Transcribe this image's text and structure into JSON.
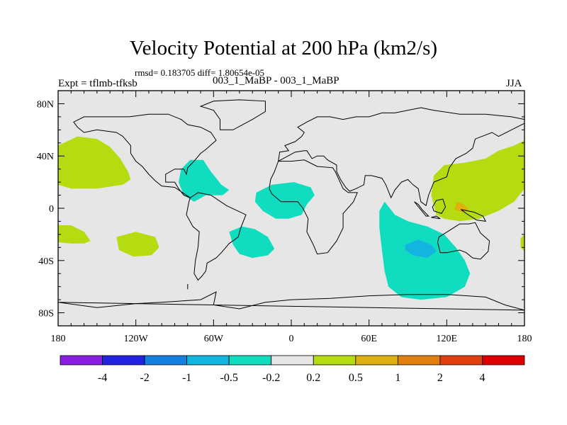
{
  "chart_data": {
    "type": "heatmap",
    "title": "Velocity Potential at 200 hPa (km2/s)",
    "stats_text": "rmsd= 0.183705 diff= 1.80654e-05",
    "left_label": "Expt = tflmb-tfksb",
    "center_label": "003_1_MaBP - 003_1_MaBP",
    "right_label": "JJA",
    "x_range": [
      -180,
      180
    ],
    "y_range": [
      -90,
      90
    ],
    "x_ticks": [
      {
        "value": -180,
        "label": "180"
      },
      {
        "value": -120,
        "label": "120W"
      },
      {
        "value": -60,
        "label": "60W"
      },
      {
        "value": 0,
        "label": "0"
      },
      {
        "value": 60,
        "label": "60E"
      },
      {
        "value": 120,
        "label": "120E"
      },
      {
        "value": 180,
        "label": "180"
      }
    ],
    "y_ticks": [
      {
        "value": 80,
        "label": "80N"
      },
      {
        "value": 40,
        "label": "40N"
      },
      {
        "value": 0,
        "label": "0"
      },
      {
        "value": -40,
        "label": "40S"
      },
      {
        "value": -80,
        "label": "80S"
      }
    ],
    "background_color": "#e6e6e6",
    "colorbar": {
      "colors": [
        "#8a1ee0",
        "#2222e0",
        "#1480e0",
        "#14b4e0",
        "#10dcc0",
        "#e6e6e6",
        "#b4dc10",
        "#e0b010",
        "#e08010",
        "#e04010",
        "#dc0000"
      ],
      "labels": [
        "-4",
        "-2",
        "-1",
        "-0.5",
        "-0.2",
        "0.2",
        "0.5",
        "1",
        "2",
        "4"
      ]
    },
    "regions": [
      {
        "name": "north-pacific-positive",
        "level": "0.2 to 0.5",
        "color": "#b4dc10",
        "polygon": [
          [
            -180,
            48
          ],
          [
            -165,
            55
          ],
          [
            -150,
            53
          ],
          [
            -140,
            47
          ],
          [
            -132,
            38
          ],
          [
            -126,
            28
          ],
          [
            -124,
            22
          ],
          [
            -130,
            18
          ],
          [
            -150,
            15
          ],
          [
            -170,
            15
          ],
          [
            -180,
            18
          ]
        ]
      },
      {
        "name": "tropical-east-pacific-positive",
        "level": "0.2 to 0.5",
        "color": "#b4dc10",
        "polygon": [
          [
            -180,
            -13
          ],
          [
            -170,
            -13
          ],
          [
            -160,
            -18
          ],
          [
            -155,
            -25
          ],
          [
            -160,
            -27
          ],
          [
            -170,
            -27
          ],
          [
            -180,
            -26
          ]
        ]
      },
      {
        "name": "south-pacific-positive",
        "level": "0.2 to 0.5",
        "color": "#b4dc10",
        "polygon": [
          [
            -135,
            -22
          ],
          [
            -120,
            -18
          ],
          [
            -105,
            -22
          ],
          [
            -102,
            -30
          ],
          [
            -108,
            -36
          ],
          [
            -122,
            -37
          ],
          [
            -133,
            -32
          ]
        ]
      },
      {
        "name": "caribbean-negative",
        "level": "-0.5 to -0.2",
        "color": "#10dcc0",
        "polygon": [
          [
            -85,
            30
          ],
          [
            -78,
            37
          ],
          [
            -68,
            37
          ],
          [
            -62,
            28
          ],
          [
            -54,
            18
          ],
          [
            -48,
            14
          ],
          [
            -53,
            10
          ],
          [
            -66,
            10
          ],
          [
            -75,
            5
          ],
          [
            -83,
            10
          ],
          [
            -87,
            20
          ]
        ]
      },
      {
        "name": "tropical-atlantic-negative",
        "level": "-0.5 to -0.2",
        "color": "#10dcc0",
        "polygon": [
          [
            -27,
            12
          ],
          [
            -15,
            18
          ],
          [
            2,
            20
          ],
          [
            15,
            16
          ],
          [
            18,
            10
          ],
          [
            12,
            3
          ],
          [
            8,
            -5
          ],
          [
            -2,
            -8
          ],
          [
            -12,
            -8
          ],
          [
            -22,
            -2
          ],
          [
            -28,
            5
          ]
        ]
      },
      {
        "name": "south-atlantic-negative",
        "level": "-0.5 to -0.2",
        "color": "#10dcc0",
        "polygon": [
          [
            -48,
            -18
          ],
          [
            -38,
            -14
          ],
          [
            -28,
            -16
          ],
          [
            -18,
            -22
          ],
          [
            -13,
            -31
          ],
          [
            -18,
            -36
          ],
          [
            -30,
            -38
          ],
          [
            -40,
            -35
          ],
          [
            -45,
            -28
          ]
        ]
      },
      {
        "name": "indian-ocean-negative",
        "level": "-0.5 to -0.2",
        "color": "#10dcc0",
        "polygon": [
          [
            72,
            5
          ],
          [
            80,
            -5
          ],
          [
            90,
            -10
          ],
          [
            105,
            -14
          ],
          [
            118,
            -20
          ],
          [
            127,
            -30
          ],
          [
            134,
            -40
          ],
          [
            138,
            -50
          ],
          [
            134,
            -60
          ],
          [
            120,
            -68
          ],
          [
            100,
            -70
          ],
          [
            85,
            -68
          ],
          [
            75,
            -60
          ],
          [
            72,
            -48
          ],
          [
            70,
            -32
          ],
          [
            68,
            -15
          ],
          [
            68,
            -2
          ]
        ]
      },
      {
        "name": "indian-ocean-strong-negative",
        "level": "-1 to -0.5",
        "color": "#14b4e0",
        "polygon": [
          [
            88,
            -28
          ],
          [
            98,
            -24
          ],
          [
            108,
            -28
          ],
          [
            112,
            -33
          ],
          [
            105,
            -38
          ],
          [
            94,
            -36
          ],
          [
            88,
            -32
          ]
        ]
      },
      {
        "name": "west-pacific-positive",
        "level": "0.2 to 0.5",
        "color": "#b4dc10",
        "polygon": [
          [
            112,
            -5
          ],
          [
            108,
            10
          ],
          [
            110,
            25
          ],
          [
            118,
            33
          ],
          [
            135,
            35
          ],
          [
            150,
            38
          ],
          [
            160,
            44
          ],
          [
            172,
            48
          ],
          [
            180,
            52
          ],
          [
            180,
            15
          ],
          [
            172,
            5
          ],
          [
            160,
            -2
          ],
          [
            145,
            -8
          ],
          [
            130,
            -10
          ],
          [
            118,
            -8
          ]
        ]
      },
      {
        "name": "west-pacific-core-positive",
        "level": "0.5 to 1",
        "color": "#e0b010",
        "polygon": [
          [
            128,
            5
          ],
          [
            133,
            3
          ],
          [
            137,
            -1
          ],
          [
            132,
            -3
          ],
          [
            126,
            -1
          ]
        ]
      },
      {
        "name": "dateline-south-positive",
        "level": "0.2 to 0.5",
        "color": "#b4dc10",
        "polygon": [
          [
            180,
            -20
          ],
          [
            177,
            -23
          ],
          [
            177,
            -30
          ],
          [
            180,
            -33
          ]
        ]
      }
    ],
    "continents": [
      [
        [
          -168,
          66
        ],
        [
          -160,
          70
        ],
        [
          -140,
          70
        ],
        [
          -125,
          70
        ],
        [
          -110,
          72
        ],
        [
          -95,
          72
        ],
        [
          -85,
          68
        ],
        [
          -80,
          64
        ],
        [
          -70,
          62
        ],
        [
          -62,
          58
        ],
        [
          -58,
          52
        ],
        [
          -66,
          45
        ],
        [
          -70,
          42
        ],
        [
          -76,
          35
        ],
        [
          -80,
          31
        ],
        [
          -81,
          26
        ],
        [
          -83,
          30
        ],
        [
          -90,
          30
        ],
        [
          -97,
          26
        ],
        [
          -97,
          20
        ],
        [
          -90,
          20
        ],
        [
          -87,
          15
        ],
        [
          -83,
          10
        ],
        [
          -78,
          8
        ],
        [
          -90,
          16
        ],
        [
          -100,
          17
        ],
        [
          -105,
          21
        ],
        [
          -110,
          26
        ],
        [
          -115,
          32
        ],
        [
          -120,
          36
        ],
        [
          -124,
          42
        ],
        [
          -124,
          48
        ],
        [
          -130,
          55
        ],
        [
          -135,
          58
        ],
        [
          -150,
          60
        ],
        [
          -160,
          58
        ],
        [
          -165,
          62
        ]
      ],
      [
        [
          -78,
          8
        ],
        [
          -72,
          12
        ],
        [
          -62,
          10
        ],
        [
          -50,
          2
        ],
        [
          -35,
          -5
        ],
        [
          -39,
          -15
        ],
        [
          -41,
          -22
        ],
        [
          -48,
          -27
        ],
        [
          -54,
          -34
        ],
        [
          -58,
          -38
        ],
        [
          -65,
          -42
        ],
        [
          -66,
          -48
        ],
        [
          -69,
          -52
        ],
        [
          -72,
          -55
        ],
        [
          -75,
          -50
        ],
        [
          -74,
          -40
        ],
        [
          -72,
          -30
        ],
        [
          -71,
          -18
        ],
        [
          -76,
          -14
        ],
        [
          -81,
          -5
        ],
        [
          -80,
          0
        ],
        [
          -79,
          5
        ]
      ],
      [
        [
          -55,
          60
        ],
        [
          -45,
          60
        ],
        [
          -30,
          68
        ],
        [
          -20,
          74
        ],
        [
          -20,
          82
        ],
        [
          -40,
          83
        ],
        [
          -60,
          82
        ],
        [
          -70,
          78
        ],
        [
          -60,
          75
        ],
        [
          -55,
          68
        ]
      ],
      [
        [
          -10,
          36
        ],
        [
          0,
          36
        ],
        [
          10,
          37
        ],
        [
          20,
          32
        ],
        [
          32,
          31
        ],
        [
          34,
          28
        ],
        [
          40,
          15
        ],
        [
          44,
          12
        ],
        [
          51,
          12
        ],
        [
          48,
          5
        ],
        [
          40,
          -4
        ],
        [
          40,
          -15
        ],
        [
          35,
          -25
        ],
        [
          28,
          -34
        ],
        [
          20,
          -35
        ],
        [
          17,
          -28
        ],
        [
          12,
          -18
        ],
        [
          13,
          -8
        ],
        [
          9,
          0
        ],
        [
          5,
          5
        ],
        [
          -8,
          5
        ],
        [
          -15,
          11
        ],
        [
          -17,
          15
        ],
        [
          -16,
          22
        ],
        [
          -13,
          28
        ]
      ],
      [
        [
          -10,
          36
        ],
        [
          -9,
          43
        ],
        [
          -2,
          44
        ],
        [
          -5,
          48
        ],
        [
          3,
          51
        ],
        [
          8,
          55
        ],
        [
          10,
          58
        ],
        [
          5,
          62
        ],
        [
          12,
          66
        ],
        [
          20,
          70
        ],
        [
          30,
          70
        ],
        [
          40,
          68
        ],
        [
          50,
          70
        ],
        [
          60,
          70
        ],
        [
          70,
          73
        ],
        [
          80,
          73
        ],
        [
          100,
          77
        ],
        [
          110,
          75
        ],
        [
          130,
          72
        ],
        [
          150,
          72
        ],
        [
          170,
          70
        ],
        [
          180,
          68
        ],
        [
          180,
          65
        ],
        [
          170,
          60
        ],
        [
          160,
          55
        ],
        [
          155,
          58
        ],
        [
          142,
          53
        ],
        [
          140,
          46
        ],
        [
          135,
          42
        ],
        [
          127,
          38
        ],
        [
          122,
          31
        ],
        [
          120,
          24
        ],
        [
          110,
          20
        ],
        [
          106,
          10
        ],
        [
          104,
          2
        ],
        [
          100,
          5
        ],
        [
          98,
          15
        ],
        [
          94,
          18
        ],
        [
          90,
          22
        ],
        [
          85,
          20
        ],
        [
          80,
          14
        ],
        [
          77,
          8
        ],
        [
          73,
          18
        ],
        [
          70,
          23
        ],
        [
          62,
          25
        ],
        [
          57,
          25
        ],
        [
          56,
          18
        ],
        [
          50,
          15
        ],
        [
          45,
          13
        ],
        [
          42,
          16
        ],
        [
          38,
          22
        ],
        [
          35,
          28
        ],
        [
          35,
          33
        ],
        [
          28,
          37
        ],
        [
          25,
          40
        ],
        [
          20,
          40
        ],
        [
          16,
          38
        ],
        [
          12,
          44
        ],
        [
          10,
          44
        ],
        [
          3,
          43
        ]
      ],
      [
        [
          114,
          -22
        ],
        [
          122,
          -17
        ],
        [
          130,
          -12
        ],
        [
          137,
          -12
        ],
        [
          142,
          -11
        ],
        [
          146,
          -19
        ],
        [
          153,
          -25
        ],
        [
          152,
          -33
        ],
        [
          146,
          -39
        ],
        [
          140,
          -38
        ],
        [
          135,
          -34
        ],
        [
          130,
          -32
        ],
        [
          120,
          -34
        ],
        [
          115,
          -34
        ],
        [
          113,
          -26
        ]
      ],
      [
        [
          95,
          5
        ],
        [
          104,
          -6
        ],
        [
          106,
          -6
        ],
        [
          101,
          -1
        ],
        [
          98,
          3
        ]
      ],
      [
        [
          108,
          -7
        ],
        [
          115,
          -8
        ],
        [
          112,
          -6
        ]
      ],
      [
        [
          109,
          1
        ],
        [
          112,
          6
        ],
        [
          117,
          7
        ],
        [
          119,
          1
        ],
        [
          116,
          -4
        ],
        [
          110,
          -2
        ]
      ],
      [
        [
          131,
          -1
        ],
        [
          141,
          -3
        ],
        [
          148,
          -6
        ],
        [
          150,
          -10
        ],
        [
          143,
          -9
        ],
        [
          135,
          -4
        ]
      ],
      [
        [
          -180,
          -72
        ],
        [
          -150,
          -76
        ],
        [
          -120,
          -73
        ],
        [
          -100,
          -72
        ],
        [
          -70,
          -70
        ],
        [
          -58,
          -64
        ],
        [
          -60,
          -74
        ],
        [
          -40,
          -77
        ],
        [
          -20,
          -72
        ],
        [
          0,
          -70
        ],
        [
          30,
          -69
        ],
        [
          60,
          -67
        ],
        [
          90,
          -66
        ],
        [
          120,
          -66
        ],
        [
          150,
          -68
        ],
        [
          165,
          -74
        ],
        [
          180,
          -78
        ]
      ],
      [
        [
          -80,
          -58
        ],
        [
          -80,
          -62
        ]
      ]
    ]
  }
}
